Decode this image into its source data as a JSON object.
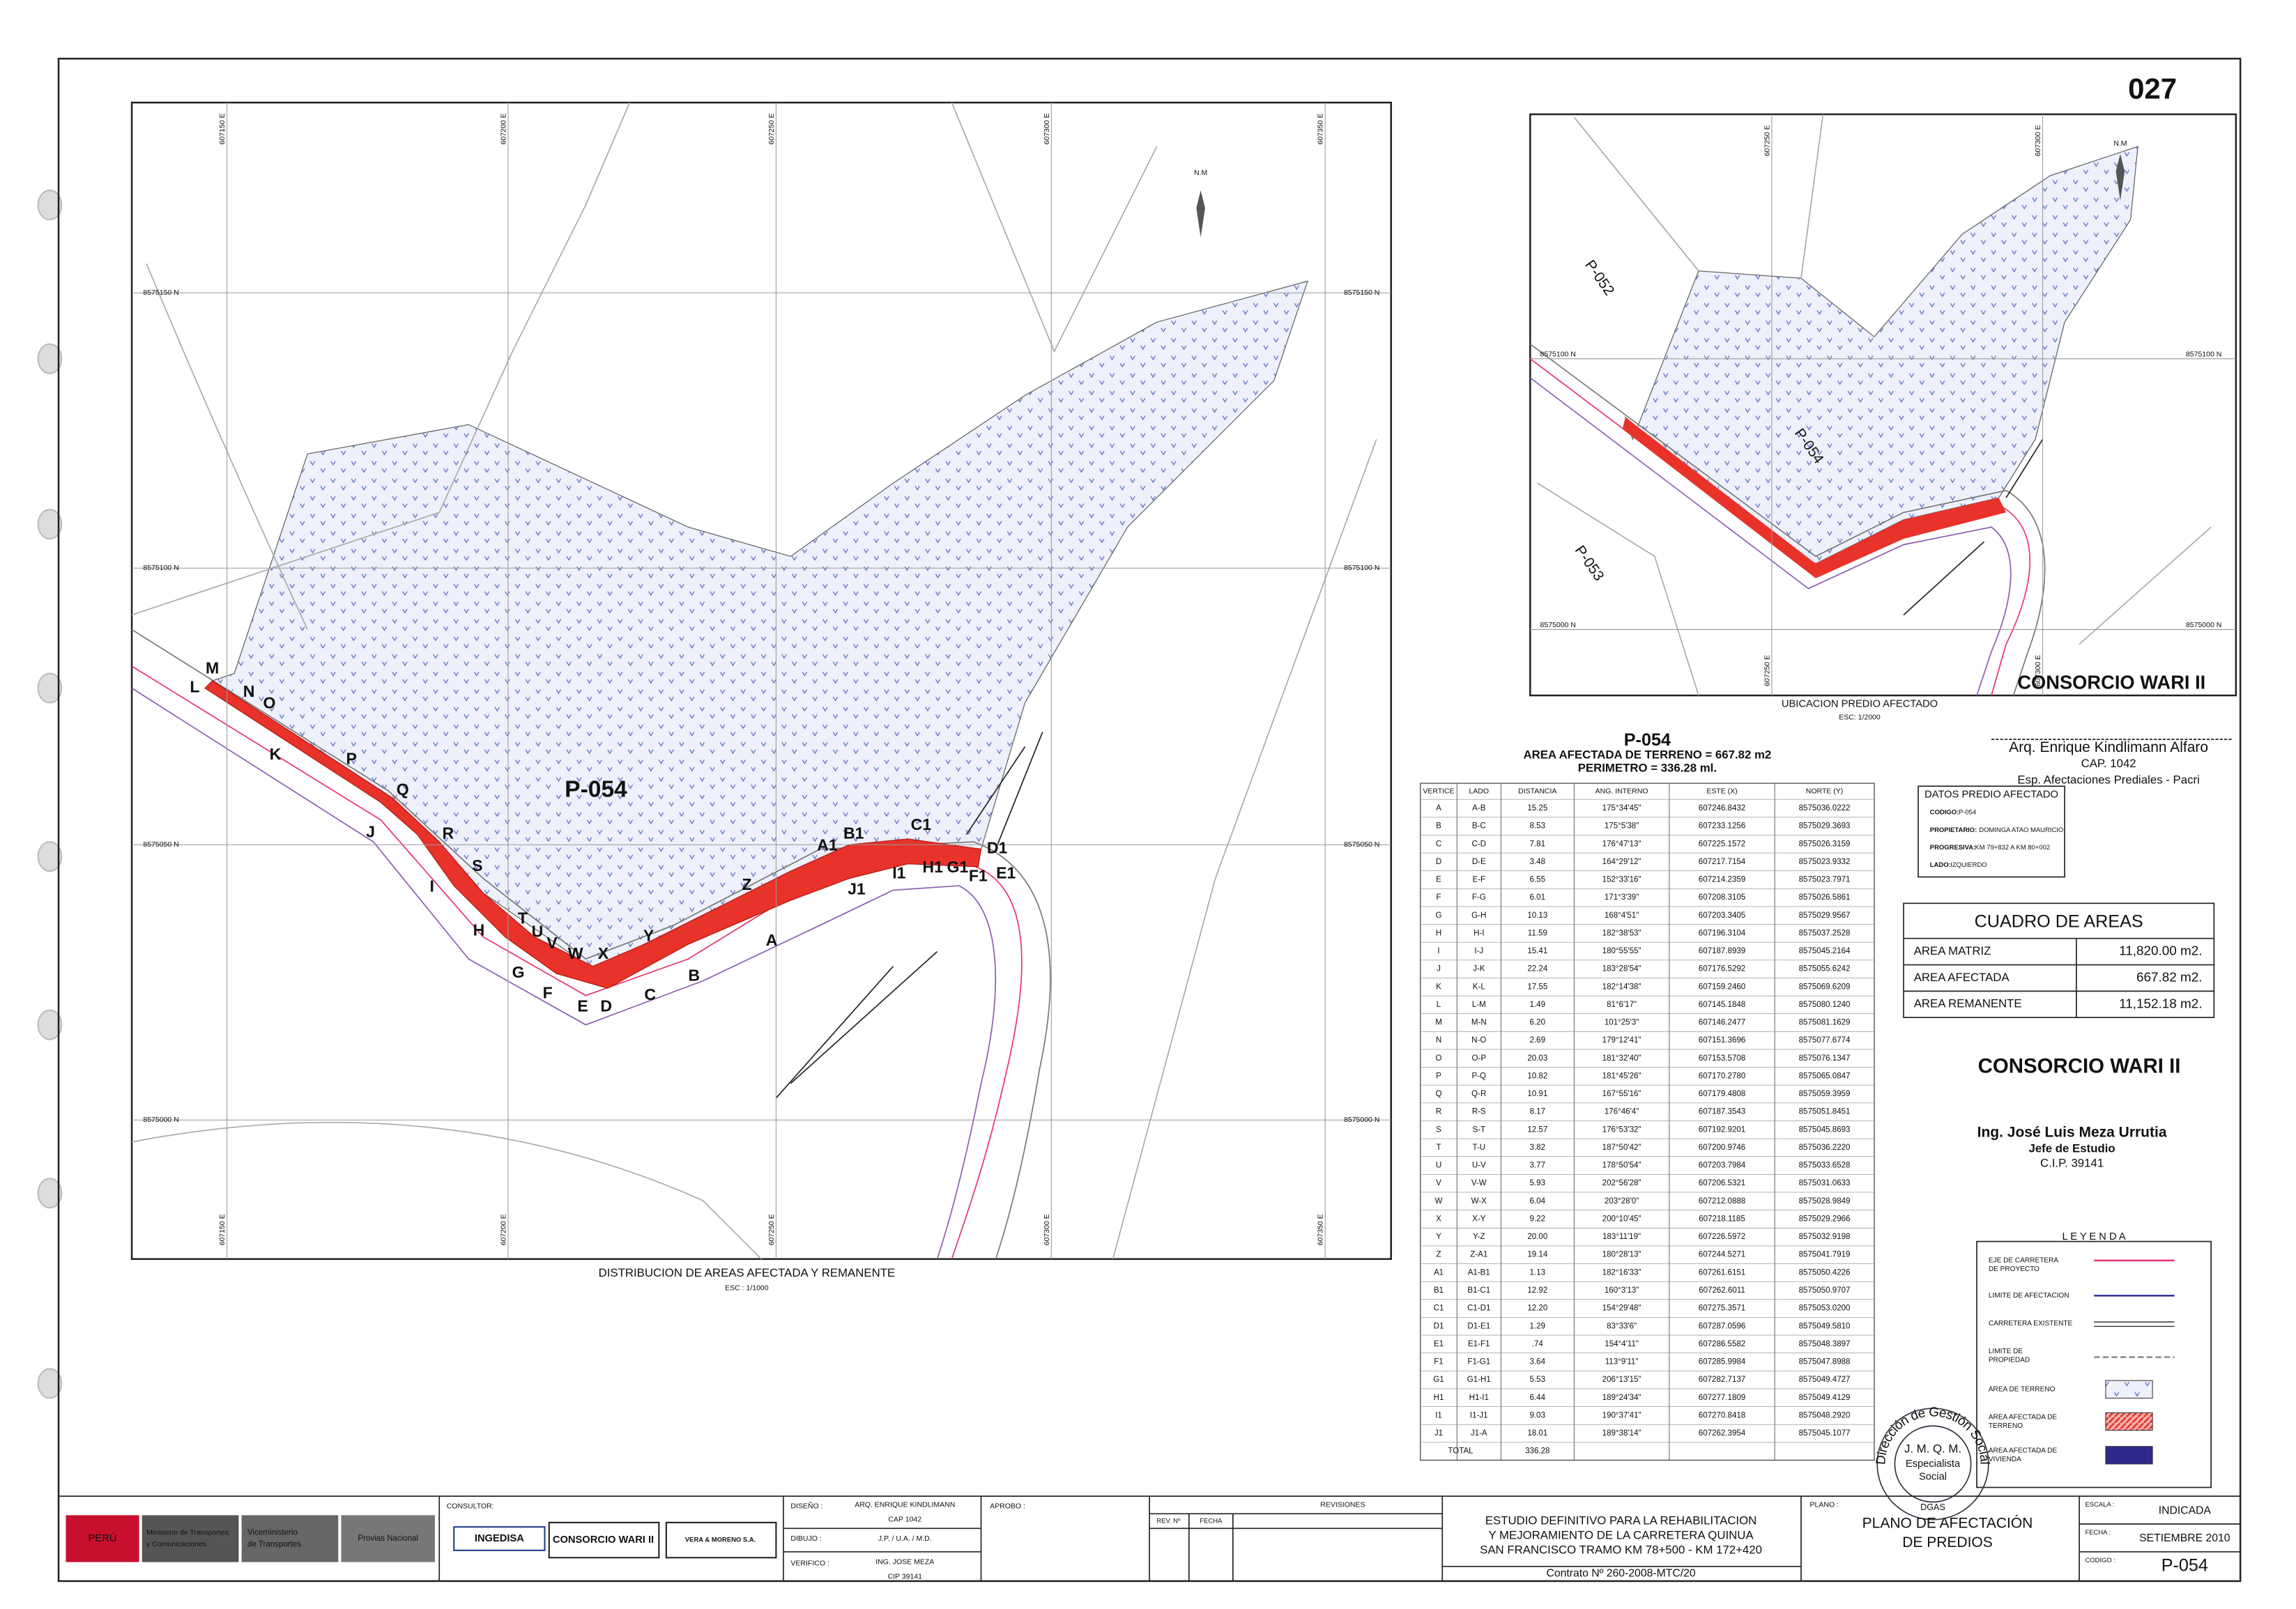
{
  "sheet_number": "027",
  "main_map": {
    "grid_x": [
      "607150 E",
      "607200 E",
      "607250 E",
      "607300 E",
      "607350 E"
    ],
    "grid_y": [
      "8575150 N",
      "8575100 N",
      "8575050 N",
      "8575000 N"
    ],
    "north": "N.M",
    "parcel": "P-054",
    "vertices": [
      "M",
      "L",
      "N",
      "O",
      "K",
      "P",
      "Q",
      "J",
      "R",
      "S",
      "I",
      "T",
      "H",
      "U",
      "V",
      "W",
      "X",
      "G",
      "Y",
      "Z",
      "A",
      "B",
      "C",
      "F",
      "E",
      "D",
      "A1",
      "B1",
      "C1",
      "J1",
      "I1",
      "H1",
      "G1",
      "F1",
      "E1",
      "D1"
    ],
    "caption": "DISTRIBUCION DE AREAS AFECTADA Y REMANENTE",
    "scale": "ESC : 1/1000"
  },
  "location_map": {
    "grid_x": [
      "607250 E",
      "607300 E"
    ],
    "grid_y": [
      "8575100 N",
      "8575000 N"
    ],
    "north": "N.M",
    "parcels": [
      "P-052",
      "P-054",
      "P-053"
    ],
    "caption": "UBICACION PREDIO AFECTADO",
    "scale": "ESC: 1/2000"
  },
  "signature_top": {
    "company": "CONSORCIO WARI II",
    "name": "Arq. Enrique Kindlimann Alfaro",
    "cap": "CAP. 1042",
    "role": "Esp. Afectaciones Prediales - Pacri"
  },
  "table": {
    "title": "P-054",
    "area": "AREA AFECTADA DE TERRENO = 667.82 m2",
    "perimeter": "PERIMETRO = 336.28 ml.",
    "header": [
      "VERTICE",
      "LADO",
      "DISTANCIA",
      "ANG. INTERNO",
      "ESTE (X)",
      "NORTE (Y)"
    ],
    "rows": [
      [
        "A",
        "A-B",
        "15.25",
        "175°34'45\"",
        "607246.8432",
        "8575036.0222"
      ],
      [
        "B",
        "B-C",
        "8.53",
        "175°5'38\"",
        "607233.1256",
        "8575029.3693"
      ],
      [
        "C",
        "C-D",
        "7.81",
        "176°47'13\"",
        "607225.1572",
        "8575026.3159"
      ],
      [
        "D",
        "D-E",
        "3.48",
        "164°29'12\"",
        "607217.7154",
        "8575023.9332"
      ],
      [
        "E",
        "E-F",
        "6.55",
        "152°33'16\"",
        "607214.2359",
        "8575023.7971"
      ],
      [
        "F",
        "F-G",
        "6.01",
        "171°3'39\"",
        "607208.3105",
        "8575026.5861"
      ],
      [
        "G",
        "G-H",
        "10.13",
        "168°4'51\"",
        "607203.3405",
        "8575029.9567"
      ],
      [
        "H",
        "H-I",
        "11.59",
        "182°38'53\"",
        "607196.3104",
        "8575037.2528"
      ],
      [
        "I",
        "I-J",
        "15.41",
        "180°55'55\"",
        "607187.8939",
        "8575045.2164"
      ],
      [
        "J",
        "J-K",
        "22.24",
        "183°28'54\"",
        "607176.5292",
        "8575055.6242"
      ],
      [
        "K",
        "K-L",
        "17.55",
        "182°14'38\"",
        "607159.2460",
        "8575069.6209"
      ],
      [
        "L",
        "L-M",
        "1.49",
        "81°6'17\"",
        "607145.1848",
        "8575080.1240"
      ],
      [
        "M",
        "M-N",
        "6.20",
        "101°25'3\"",
        "607146.2477",
        "8575081.1629"
      ],
      [
        "N",
        "N-O",
        "2.69",
        "179°12'41\"",
        "607151.3696",
        "8575077.6774"
      ],
      [
        "O",
        "O-P",
        "20.03",
        "181°32'40\"",
        "607153.5708",
        "8575076.1347"
      ],
      [
        "P",
        "P-Q",
        "10.82",
        "181°45'26\"",
        "607170.2780",
        "8575065.0847"
      ],
      [
        "Q",
        "Q-R",
        "10.91",
        "167°55'16\"",
        "607179.4808",
        "8575059.3959"
      ],
      [
        "R",
        "R-S",
        "8.17",
        "176°46'4\"",
        "607187.3543",
        "8575051.8451"
      ],
      [
        "S",
        "S-T",
        "12.57",
        "176°53'32\"",
        "607192.9201",
        "8575045.8693"
      ],
      [
        "T",
        "T-U",
        "3.82",
        "187°50'42\"",
        "607200.9746",
        "8575036.2220"
      ],
      [
        "U",
        "U-V",
        "3.77",
        "178°50'54\"",
        "607203.7984",
        "8575033.6528"
      ],
      [
        "V",
        "V-W",
        "5.93",
        "202°56'28\"",
        "607206.5321",
        "8575031.0633"
      ],
      [
        "W",
        "W-X",
        "6.04",
        "203°28'0\"",
        "607212.0888",
        "8575028.9849"
      ],
      [
        "X",
        "X-Y",
        "9.22",
        "200°10'45\"",
        "607218.1185",
        "8575029.2966"
      ],
      [
        "Y",
        "Y-Z",
        "20.00",
        "183°11'19\"",
        "607226.5972",
        "8575032.9198"
      ],
      [
        "Z",
        "Z-A1",
        "19.14",
        "180°28'13\"",
        "607244.5271",
        "8575041.7919"
      ],
      [
        "A1",
        "A1-B1",
        "1.13",
        "182°16'33\"",
        "607261.6151",
        "8575050.4226"
      ],
      [
        "B1",
        "B1-C1",
        "12.92",
        "160°3'13\"",
        "607262.6011",
        "8575050.9707"
      ],
      [
        "C1",
        "C1-D1",
        "12.20",
        "154°29'48\"",
        "607275.3571",
        "8575053.0200"
      ],
      [
        "D1",
        "D1-E1",
        "1.29",
        "83°33'6\"",
        "607287.0596",
        "8575049.5810"
      ],
      [
        "E1",
        "E1-F1",
        ".74",
        "154°4'11\"",
        "607286.5582",
        "8575048.3897"
      ],
      [
        "F1",
        "F1-G1",
        "3.64",
        "113°9'11\"",
        "607285.9984",
        "8575047.8988"
      ],
      [
        "G1",
        "G1-H1",
        "5.53",
        "206°13'15\"",
        "607282.7137",
        "8575049.4727"
      ],
      [
        "H1",
        "H1-I1",
        "6.44",
        "189°24'34\"",
        "607277.1809",
        "8575049.4129"
      ],
      [
        "I1",
        "I1-J1",
        "9.03",
        "190°37'41\"",
        "607270.8418",
        "8575048.2920"
      ],
      [
        "J1",
        "J1-A",
        "18.01",
        "189°38'14\"",
        "607262.3954",
        "8575045.1077"
      ]
    ],
    "total": [
      "TOTAL",
      "336.28"
    ]
  },
  "predio": {
    "title": "DATOS PREDIO AFECTADO",
    "fields": [
      [
        "CODIGO:",
        "P-054"
      ],
      [
        "PROPIETARIO:",
        "DOMINGA ATAO MAURICIO"
      ],
      [
        "PROGRESIVA:",
        "KM 79+832 A KM 80+002"
      ],
      [
        "LADO:",
        "IZQUIERDO"
      ]
    ]
  },
  "areas": {
    "title": "CUADRO DE AREAS",
    "rows": [
      [
        "AREA MATRIZ",
        "11,820.00 m2."
      ],
      [
        "AREA AFECTADA",
        "667.82 m2."
      ],
      [
        "AREA REMANENTE",
        "11,152.18 m2."
      ]
    ]
  },
  "signature_bottom": {
    "company": "CONSORCIO WARI II",
    "name": "Ing. José Luis Meza Urrutia",
    "role": "Jefe de Estudio",
    "cip": "C.I.P. 39141"
  },
  "legend": {
    "title": "L E Y E N D A",
    "items": [
      [
        "EJE DE CARRETERA",
        "DE PROYECTO"
      ],
      [
        "LIMITE DE AFECTACION"
      ],
      [
        "CARRETERA EXISTENTE"
      ],
      [
        "LIMITE DE",
        "PROPIEDAD"
      ],
      [
        "AREA DE TERRENO"
      ],
      [
        "AREA AFECTADA DE",
        "TERRENO"
      ],
      [
        "AREA AFECTADA DE",
        "VIVIENDA"
      ]
    ]
  },
  "stamp": {
    "ring": "Dirección de Gestión Social",
    "initials": "J. M. Q. M.",
    "role": [
      "Especialista",
      "Social"
    ],
    "base": "DGAS"
  },
  "title_block": {
    "client": {
      "country": "PERÚ",
      "ministry": [
        "Ministerio de Transportes",
        "y Comunicaciones"
      ],
      "vice": [
        "Viceministerio",
        "de Transportes"
      ],
      "agency": "Provias Nacional"
    },
    "consultor_label": "CONSULTOR:",
    "consultants": [
      "INGEDISA",
      "CONSORCIO WARI II",
      "VERA & MORENO S.A."
    ],
    "staff": [
      [
        "DISEÑO :",
        "ARQ. ENRIQUE KINDLIMANN",
        "CAP 1042"
      ],
      [
        "DIBUJO :",
        "J.P. / U.A. / M.D."
      ],
      [
        "VERIFICO :",
        "ING. JOSE MEZA",
        "CIP 39141"
      ]
    ],
    "approved_label": "APROBO :",
    "revisions": {
      "title": "REVISIONES",
      "columns": [
        "REV. Nº",
        "FECHA"
      ]
    },
    "project": [
      "ESTUDIO DEFINITIVO PARA LA REHABILITACION",
      "Y MEJORAMIENTO DE LA CARRETERA QUINUA",
      "SAN FRANCISCO TRAMO KM 78+500 - KM 172+420"
    ],
    "contract": "Contrato Nº 260-2008-MTC/20",
    "plan_label": "PLANO :",
    "plan": [
      "PLANO DE AFECTACIÓN",
      "DE PREDIOS"
    ],
    "scale": [
      "ESCALA :",
      "INDICADA"
    ],
    "date": [
      "FECHA :",
      "SETIEMBRE 2010"
    ],
    "code": [
      "CODIGO :",
      "P-054"
    ]
  }
}
